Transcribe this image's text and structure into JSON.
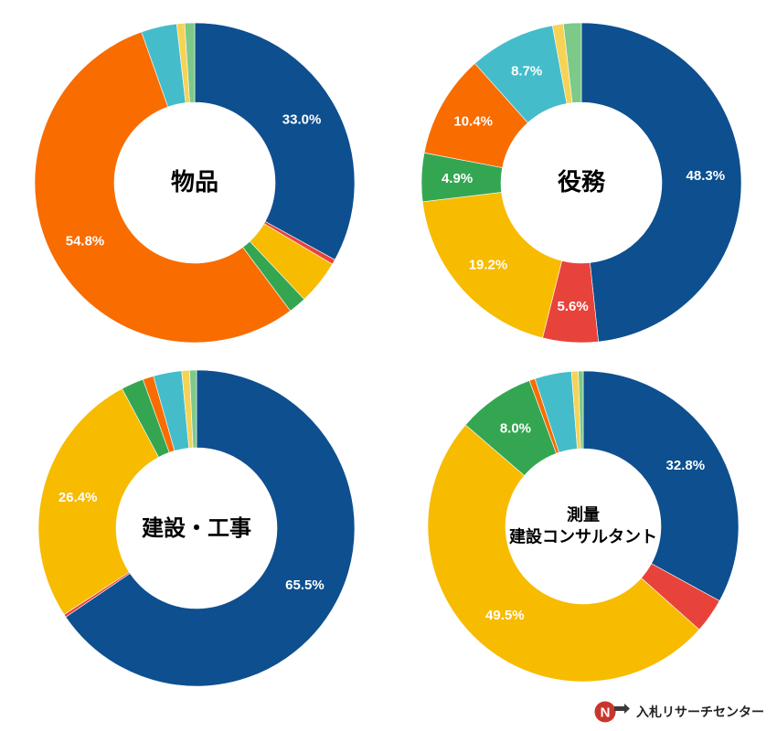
{
  "colors": {
    "blue": "#0d4f8f",
    "red": "#e8433a",
    "yellow": "#f7bb00",
    "green": "#34a651",
    "orange": "#f86c00",
    "cyan": "#45bcc9",
    "lightyellow": "#f6d356",
    "lightgreen": "#7cc98a"
  },
  "chart_data": [
    {
      "type": "pie",
      "center_lines": [
        "物品"
      ],
      "slices": [
        {
          "value": 33.0,
          "color": "blue",
          "label": "33.0%"
        },
        {
          "value": 0.5,
          "color": "red",
          "label": ""
        },
        {
          "value": 4.5,
          "color": "yellow",
          "label": ""
        },
        {
          "value": 1.8,
          "color": "green",
          "label": ""
        },
        {
          "value": 54.8,
          "color": "orange",
          "label": "54.8%"
        },
        {
          "value": 3.6,
          "color": "cyan",
          "label": ""
        },
        {
          "value": 0.8,
          "color": "lightyellow",
          "label": ""
        },
        {
          "value": 1.0,
          "color": "lightgreen",
          "label": ""
        }
      ]
    },
    {
      "type": "pie",
      "center_lines": [
        "役務"
      ],
      "slices": [
        {
          "value": 48.3,
          "color": "blue",
          "label": "48.3%"
        },
        {
          "value": 5.6,
          "color": "red",
          "label": "5.6%"
        },
        {
          "value": 19.2,
          "color": "yellow",
          "label": "19.2%"
        },
        {
          "value": 4.9,
          "color": "green",
          "label": "4.9%"
        },
        {
          "value": 10.4,
          "color": "orange",
          "label": "10.4%"
        },
        {
          "value": 8.7,
          "color": "cyan",
          "label": "8.7%"
        },
        {
          "value": 1.1,
          "color": "lightyellow",
          "label": ""
        },
        {
          "value": 1.8,
          "color": "lightgreen",
          "label": ""
        }
      ]
    },
    {
      "type": "pie",
      "center_lines": [
        "建設・工事"
      ],
      "slices": [
        {
          "value": 65.5,
          "color": "blue",
          "label": "65.5%"
        },
        {
          "value": 0.3,
          "color": "red",
          "label": ""
        },
        {
          "value": 26.4,
          "color": "yellow",
          "label": "26.4%"
        },
        {
          "value": 2.3,
          "color": "green",
          "label": ""
        },
        {
          "value": 1.1,
          "color": "orange",
          "label": ""
        },
        {
          "value": 2.9,
          "color": "cyan",
          "label": ""
        },
        {
          "value": 0.8,
          "color": "lightyellow",
          "label": ""
        },
        {
          "value": 0.7,
          "color": "lightgreen",
          "label": ""
        }
      ]
    },
    {
      "type": "pie",
      "center_lines": [
        "測量",
        "建設コンサルタント"
      ],
      "slices": [
        {
          "value": 32.8,
          "color": "blue",
          "label": "32.8%"
        },
        {
          "value": 3.6,
          "color": "red",
          "label": ""
        },
        {
          "value": 49.5,
          "color": "yellow",
          "label": "49.5%"
        },
        {
          "value": 8.0,
          "color": "green",
          "label": "8.0%"
        },
        {
          "value": 0.6,
          "color": "orange",
          "label": ""
        },
        {
          "value": 3.8,
          "color": "cyan",
          "label": ""
        },
        {
          "value": 0.7,
          "color": "lightyellow",
          "label": ""
        },
        {
          "value": 0.5,
          "color": "lightgreen",
          "label": ""
        }
      ]
    }
  ],
  "brand": {
    "logo_icon": "nyusatsu-logo-icon",
    "name": "入札リサーチセンター"
  }
}
